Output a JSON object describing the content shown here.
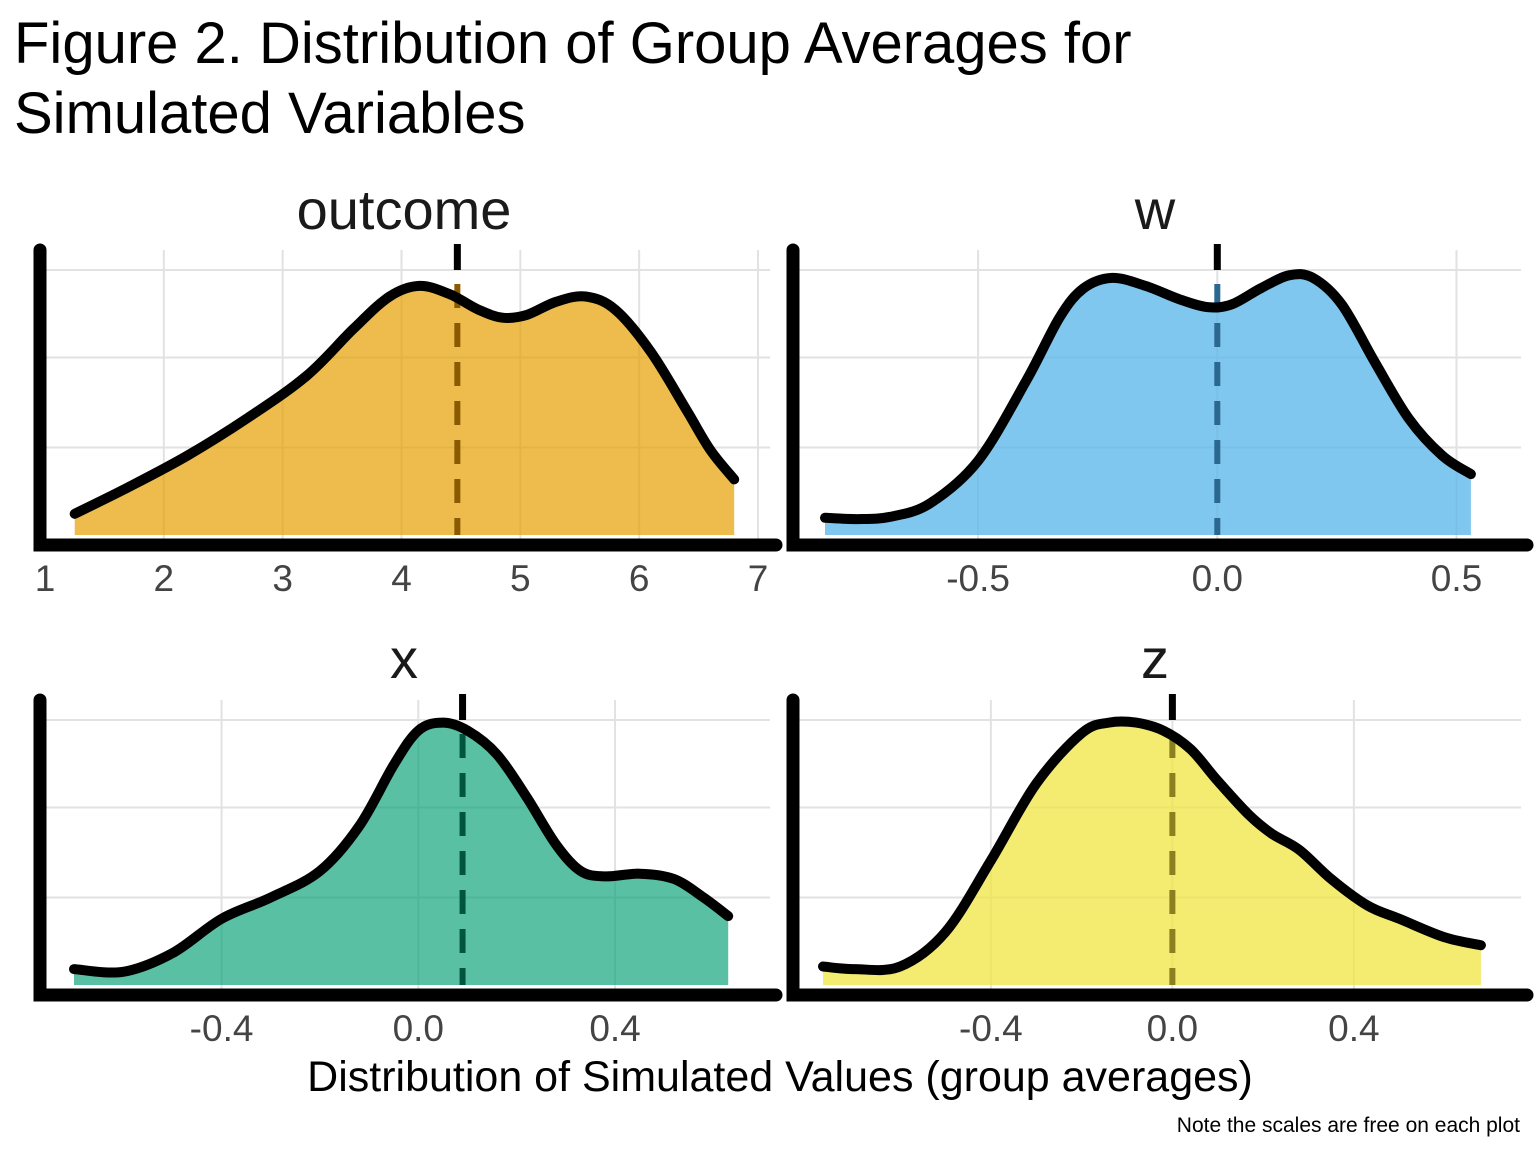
{
  "figure": {
    "title_line1": "Figure 2. Distribution of Group Averages for",
    "title_line2": "Simulated Variables",
    "xlabel": "Distribution of Simulated Values (group averages)",
    "caption": "Note the scales are free on each plot"
  },
  "chart_data": [
    {
      "type": "area",
      "title": "outcome",
      "fill": "#E69F00",
      "fill_opacity": 0.7,
      "mean_line_color": "#8a5a00",
      "xlim": [
        1,
        7
      ],
      "ylim": [
        0,
        1
      ],
      "xticks": [
        1,
        2,
        3,
        4,
        5,
        6,
        7
      ],
      "xtick_labels": [
        "1",
        "2",
        "3",
        "4",
        "5",
        "6",
        "7"
      ],
      "ygrid": [
        0.33,
        0.67,
        1.0
      ],
      "mean": 4.47,
      "points": [
        [
          1.25,
          0.08
        ],
        [
          1.7,
          0.18
        ],
        [
          2.2,
          0.3
        ],
        [
          2.7,
          0.44
        ],
        [
          3.2,
          0.6
        ],
        [
          3.6,
          0.78
        ],
        [
          3.9,
          0.9
        ],
        [
          4.15,
          0.94
        ],
        [
          4.4,
          0.91
        ],
        [
          4.65,
          0.85
        ],
        [
          4.85,
          0.82
        ],
        [
          5.05,
          0.83
        ],
        [
          5.3,
          0.88
        ],
        [
          5.55,
          0.9
        ],
        [
          5.8,
          0.85
        ],
        [
          6.1,
          0.69
        ],
        [
          6.4,
          0.47
        ],
        [
          6.6,
          0.32
        ],
        [
          6.8,
          0.21
        ]
      ]
    },
    {
      "type": "area",
      "title": "w",
      "fill": "#56B4E9",
      "fill_opacity": 0.75,
      "mean_line_color": "#2b6890",
      "xlim": [
        -0.82,
        0.57
      ],
      "ylim": [
        0,
        1
      ],
      "xticks": [
        -0.5,
        0.0,
        0.5
      ],
      "xtick_labels": [
        "-0.5",
        "0.0",
        "0.5"
      ],
      "ygrid": [
        0.33,
        0.67,
        1.0
      ],
      "mean": 0.0,
      "points": [
        [
          -0.82,
          0.065
        ],
        [
          -0.75,
          0.06
        ],
        [
          -0.68,
          0.07
        ],
        [
          -0.6,
          0.12
        ],
        [
          -0.5,
          0.28
        ],
        [
          -0.4,
          0.58
        ],
        [
          -0.33,
          0.82
        ],
        [
          -0.28,
          0.93
        ],
        [
          -0.22,
          0.97
        ],
        [
          -0.15,
          0.94
        ],
        [
          -0.08,
          0.89
        ],
        [
          -0.02,
          0.86
        ],
        [
          0.03,
          0.87
        ],
        [
          0.09,
          0.93
        ],
        [
          0.15,
          0.98
        ],
        [
          0.2,
          0.97
        ],
        [
          0.26,
          0.87
        ],
        [
          0.33,
          0.65
        ],
        [
          0.4,
          0.44
        ],
        [
          0.47,
          0.3
        ],
        [
          0.53,
          0.23
        ]
      ]
    },
    {
      "type": "area",
      "title": "x",
      "fill": "#009E73",
      "fill_opacity": 0.65,
      "mean_line_color": "#00553c",
      "xlim": [
        -0.7,
        0.65
      ],
      "ylim": [
        0,
        1
      ],
      "xticks": [
        -0.4,
        0.0,
        0.4
      ],
      "xtick_labels": [
        "-0.4",
        "0.0",
        "0.4"
      ],
      "ygrid": [
        0.33,
        0.67,
        1.0
      ],
      "mean": 0.09,
      "points": [
        [
          -0.7,
          0.06
        ],
        [
          -0.6,
          0.05
        ],
        [
          -0.5,
          0.12
        ],
        [
          -0.4,
          0.25
        ],
        [
          -0.3,
          0.33
        ],
        [
          -0.2,
          0.43
        ],
        [
          -0.12,
          0.6
        ],
        [
          -0.05,
          0.83
        ],
        [
          0.0,
          0.96
        ],
        [
          0.05,
          0.99
        ],
        [
          0.1,
          0.96
        ],
        [
          0.16,
          0.87
        ],
        [
          0.22,
          0.71
        ],
        [
          0.28,
          0.53
        ],
        [
          0.33,
          0.43
        ],
        [
          0.38,
          0.41
        ],
        [
          0.45,
          0.42
        ],
        [
          0.52,
          0.4
        ],
        [
          0.58,
          0.33
        ],
        [
          0.63,
          0.26
        ]
      ]
    },
    {
      "type": "area",
      "title": "z",
      "fill": "#F0E442",
      "fill_opacity": 0.75,
      "mean_line_color": "#8a8020",
      "xlim": [
        -0.77,
        0.7
      ],
      "ylim": [
        0,
        1
      ],
      "xticks": [
        -0.4,
        0.0,
        0.4
      ],
      "xtick_labels": [
        "-0.4",
        "0.0",
        "0.4"
      ],
      "ygrid": [
        0.33,
        0.67,
        1.0
      ],
      "mean": 0.0,
      "points": [
        [
          -0.77,
          0.07
        ],
        [
          -0.7,
          0.06
        ],
        [
          -0.6,
          0.07
        ],
        [
          -0.5,
          0.2
        ],
        [
          -0.4,
          0.47
        ],
        [
          -0.3,
          0.76
        ],
        [
          -0.2,
          0.95
        ],
        [
          -0.14,
          0.99
        ],
        [
          -0.08,
          0.99
        ],
        [
          -0.02,
          0.96
        ],
        [
          0.04,
          0.89
        ],
        [
          0.1,
          0.77
        ],
        [
          0.17,
          0.64
        ],
        [
          0.22,
          0.57
        ],
        [
          0.28,
          0.51
        ],
        [
          0.35,
          0.4
        ],
        [
          0.43,
          0.3
        ],
        [
          0.5,
          0.25
        ],
        [
          0.6,
          0.18
        ],
        [
          0.68,
          0.15
        ]
      ]
    }
  ]
}
